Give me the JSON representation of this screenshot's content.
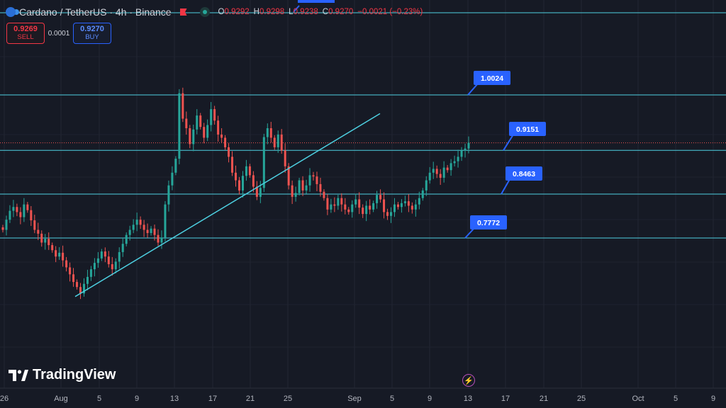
{
  "header": {
    "title": "Cardano / TetherUS · 4h · Binance",
    "ohlc": [
      {
        "key": "O",
        "value": "0.9292"
      },
      {
        "key": "H",
        "value": "0.9298"
      },
      {
        "key": "L",
        "value": "0.9238"
      },
      {
        "key": "C",
        "value": "0.9270"
      },
      {
        "key": "",
        "value": "−0.0021 (−0.23%)"
      }
    ]
  },
  "trade": {
    "sell_price": "0.9269",
    "sell_label": "SELL",
    "spread": "0.0001",
    "buy_price": "0.9270",
    "buy_label": "BUY"
  },
  "logo_text": "TradingView",
  "colors": {
    "background": "#161a25",
    "up": "#26a69a",
    "down": "#ef5350",
    "level_line": "#4dd0e1",
    "callout": "#2962ff",
    "last_price": "#ef5350"
  },
  "chart_data": {
    "type": "candlestick",
    "title": "Cardano / TetherUS · 4h · Binance",
    "timeframe": "4h",
    "x_ticks": [
      "26",
      "Aug",
      "5",
      "9",
      "13",
      "17",
      "21",
      "25",
      "Sep",
      "5",
      "9",
      "13",
      "17",
      "21",
      "25",
      "Oct",
      "5",
      "9"
    ],
    "levels": [
      {
        "label": "1.0024",
        "value": 1.0024
      },
      {
        "label": "0.9151",
        "value": 0.9151
      },
      {
        "label": "0.8463",
        "value": 0.8463
      },
      {
        "label": "0.7772",
        "value": 0.7772
      }
    ],
    "last_price": 0.927,
    "trendline": {
      "from": {
        "date": "Aug 3",
        "price": 0.685
      },
      "to": {
        "date": "Sep 3",
        "price": 0.973
      }
    },
    "candles_approx_close": [
      0.79,
      0.806,
      0.82,
      0.826,
      0.818,
      0.81,
      0.83,
      0.821,
      0.805,
      0.79,
      0.784,
      0.77,
      0.776,
      0.766,
      0.758,
      0.748,
      0.754,
      0.742,
      0.731,
      0.72,
      0.708,
      0.7,
      0.69,
      0.705,
      0.716,
      0.728,
      0.738,
      0.745,
      0.756,
      0.748,
      0.736,
      0.728,
      0.74,
      0.755,
      0.768,
      0.782,
      0.79,
      0.798,
      0.806,
      0.798,
      0.79,
      0.785,
      0.792,
      0.782,
      0.77,
      0.778,
      0.83,
      0.86,
      0.88,
      0.902,
      1.005,
      0.965,
      0.95,
      0.925,
      0.948,
      0.97,
      0.952,
      0.935,
      0.955,
      0.98,
      0.962,
      0.94,
      0.935,
      0.92,
      0.905,
      0.88,
      0.868,
      0.852,
      0.875,
      0.89,
      0.876,
      0.858,
      0.842,
      0.856,
      0.936,
      0.95,
      0.935,
      0.92,
      0.94,
      0.915,
      0.89,
      0.86,
      0.842,
      0.848,
      0.868,
      0.852,
      0.86,
      0.876,
      0.874,
      0.862,
      0.85,
      0.84,
      0.822,
      0.83,
      0.828,
      0.84,
      0.83,
      0.822,
      0.818,
      0.83,
      0.838,
      0.825,
      0.815,
      0.828,
      0.822,
      0.832,
      0.845,
      0.838,
      0.818,
      0.812,
      0.818,
      0.83,
      0.826,
      0.832,
      0.835,
      0.828,
      0.822,
      0.83,
      0.84,
      0.852,
      0.868,
      0.88,
      0.886,
      0.878,
      0.872,
      0.888,
      0.884,
      0.895,
      0.898,
      0.905,
      0.915,
      0.918,
      0.927
    ]
  }
}
